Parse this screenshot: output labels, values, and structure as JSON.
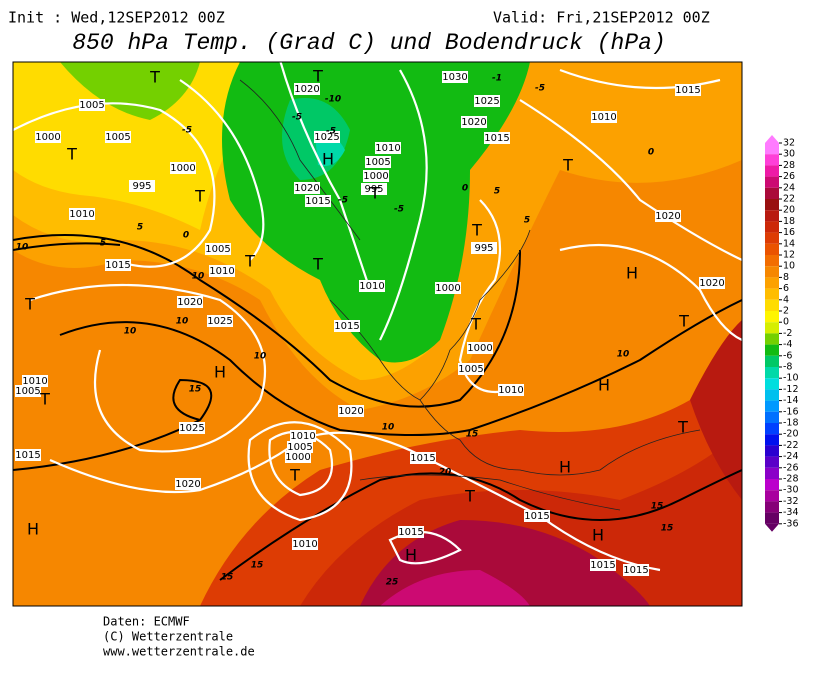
{
  "header": {
    "init": "Init : Wed,12SEP2012 00Z",
    "valid": "Valid: Fri,21SEP2012 00Z",
    "title": "850 hPa Temp. (Grad C) und Bodendruck (hPa)"
  },
  "colorbar": {
    "ticks": [
      32,
      30,
      28,
      26,
      24,
      22,
      20,
      18,
      16,
      14,
      12,
      10,
      8,
      6,
      4,
      2,
      0,
      -2,
      -4,
      -6,
      -8,
      -10,
      -12,
      -14,
      -16,
      -18,
      -20,
      -22,
      -24,
      -26,
      -28,
      -30,
      -32,
      -34,
      -36
    ],
    "colors": [
      "#ff7bff",
      "#ff3fd8",
      "#ee1aa6",
      "#cc0a72",
      "#aa0a3a",
      "#991010",
      "#b81a10",
      "#cc2808",
      "#dd3c04",
      "#ea5300",
      "#f26d00",
      "#f68700",
      "#fca100",
      "#ffbd00",
      "#ffdc00",
      "#fff500",
      "#d6ee00",
      "#74d000",
      "#12bb12",
      "#00c866",
      "#00d9a8",
      "#00dede",
      "#00c0ee",
      "#0099ff",
      "#0070ff",
      "#0040ff",
      "#0010ee",
      "#2a00d0",
      "#5a00c8",
      "#8a00c8",
      "#bb00cc",
      "#a8009e",
      "#860078",
      "#660064"
    ]
  },
  "map_labels": [
    "1005",
    "1000",
    "1005",
    "1000",
    "995",
    "1010",
    "1005",
    "1015",
    "1010",
    "1020",
    "1025",
    "1025",
    "1020",
    "1015",
    "1010",
    "1005",
    "1020",
    "1015",
    "1010",
    "1015",
    "1020",
    "1025",
    "1020",
    "1010",
    "1005",
    "1000",
    "995",
    "1030",
    "1025",
    "1020",
    "1015",
    "1010",
    "1015",
    "1020",
    "1020",
    "995",
    "1000",
    "1000",
    "1005",
    "1010",
    "1015",
    "1015",
    "1015",
    "1015",
    "1010",
    "1015",
    "1010",
    "1005",
    "1000",
    "10",
    "5",
    "10",
    "10",
    "10",
    "10",
    "15",
    "10",
    "15",
    "20",
    "15",
    "15",
    "15",
    "15",
    "25",
    "0",
    "5",
    "-5",
    "-5",
    "-5",
    "-5",
    "-5",
    "0",
    "5",
    "5",
    "0",
    "10",
    "-10",
    "-5",
    "-1",
    "T",
    "T",
    "H",
    "T",
    "T",
    "T",
    "T",
    "T",
    "T",
    "T",
    "H",
    "T",
    "H",
    "T",
    "T",
    "H",
    "H",
    "T",
    "H",
    "T",
    "H",
    "H",
    "T",
    "T"
  ],
  "footer": [
    "Daten: ECMWF",
    "(C) Wetterzentrale",
    "www.wetterzentrale.de"
  ]
}
